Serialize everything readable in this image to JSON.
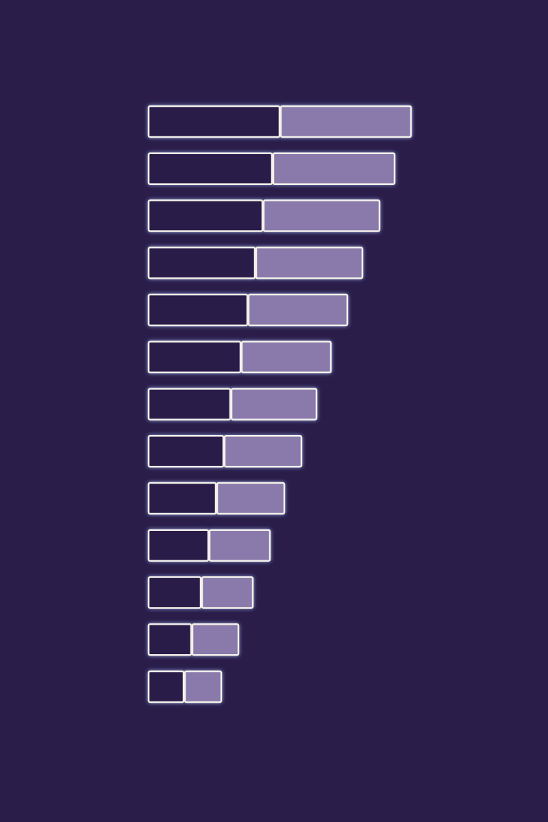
{
  "chart_data": {
    "type": "bar",
    "orientation": "horizontal",
    "stacked": true,
    "title": "",
    "xlabel": "",
    "ylabel": "",
    "grid": false,
    "legend": "none",
    "categories": [
      "",
      "",
      "",
      "",
      "",
      "",
      "",
      "",
      "",
      "",
      "",
      "",
      ""
    ],
    "series": [
      {
        "values": [
          192,
          181,
          167,
          156,
          145,
          135,
          120,
          110,
          99,
          88,
          77,
          63,
          52
        ]
      },
      {
        "values": [
          192,
          179,
          171,
          157,
          146,
          132,
          126,
          114,
          100,
          90,
          76,
          69,
          55
        ]
      }
    ],
    "xlim": [
      0,
      584
    ],
    "colors": {
      "background": "#2a1d4a",
      "series": [
        "#2a1d4a",
        "#8a7aab"
      ],
      "outline": "#f4f1ea",
      "glow": "#a9c4ff"
    }
  }
}
